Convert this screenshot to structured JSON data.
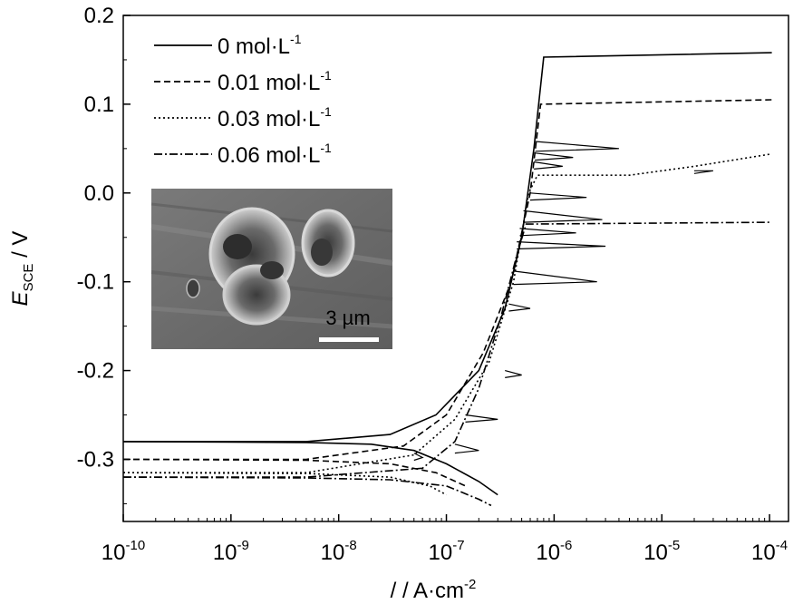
{
  "chart_data": {
    "type": "line",
    "xscale": "log",
    "xlim": [
      1e-10,
      0.00015
    ],
    "ylim": [
      -0.37,
      0.2
    ],
    "ylabel_main": "E",
    "ylabel_sub": "SCE",
    "ylabel_unit": " / V",
    "xlabel": "/ / A·cm",
    "xlabel_sup": "-2",
    "x_ticks": [
      {
        "value": 1e-10,
        "exp": "-10"
      },
      {
        "value": 1e-09,
        "exp": "-9"
      },
      {
        "value": 1e-08,
        "exp": "-8"
      },
      {
        "value": 1e-07,
        "exp": "-7"
      },
      {
        "value": 1e-06,
        "exp": "-6"
      },
      {
        "value": 1e-05,
        "exp": "-5"
      },
      {
        "value": 0.0001,
        "exp": "-4"
      }
    ],
    "x_tick_base": "10",
    "y_ticks": [
      {
        "value": 0.2,
        "label": "0.2"
      },
      {
        "value": 0.1,
        "label": "0.1"
      },
      {
        "value": 0.0,
        "label": "0.0"
      },
      {
        "value": -0.1,
        "label": "-0.1"
      },
      {
        "value": -0.2,
        "label": "-0.2"
      },
      {
        "value": -0.3,
        "label": "-0.3"
      }
    ],
    "legend_position": "top-left",
    "series": [
      {
        "name": "0 mol·L",
        "sup": "-1",
        "dash": "none",
        "cathodic": [
          [
            1e-10,
            -0.28
          ],
          [
            5e-09,
            -0.281
          ],
          [
            2e-08,
            -0.283
          ],
          [
            5e-08,
            -0.29
          ],
          [
            1e-07,
            -0.305
          ],
          [
            2e-07,
            -0.325
          ],
          [
            3e-07,
            -0.34
          ]
        ],
        "anodic": [
          [
            1e-10,
            -0.28
          ],
          [
            5e-09,
            -0.28
          ],
          [
            3e-08,
            -0.272
          ],
          [
            8e-08,
            -0.25
          ],
          [
            2e-07,
            -0.2
          ],
          [
            3.5e-07,
            -0.13
          ],
          [
            5e-07,
            -0.05
          ],
          [
            6.5e-07,
            0.05
          ],
          [
            8e-07,
            0.153
          ],
          [
            0.000105,
            0.158
          ]
        ]
      },
      {
        "name": "0.01 mol·L",
        "sup": "-1",
        "dash": "7,4",
        "cathodic": [
          [
            1e-10,
            -0.3
          ],
          [
            5e-09,
            -0.301
          ],
          [
            3e-08,
            -0.305
          ],
          [
            8e-08,
            -0.315
          ],
          [
            1.5e-07,
            -0.33
          ]
        ],
        "anodic": [
          [
            1e-10,
            -0.3
          ],
          [
            5e-09,
            -0.3
          ],
          [
            4e-08,
            -0.285
          ],
          [
            1e-07,
            -0.25
          ],
          [
            2.2e-07,
            -0.18
          ],
          [
            4e-07,
            -0.1
          ],
          [
            6e-07,
            0.0
          ],
          [
            7.5e-07,
            0.1
          ],
          [
            0.000105,
            0.105
          ]
        ]
      },
      {
        "name": "0.03 mol·L",
        "sup": "-1",
        "dash": "2,3",
        "cathodic": [
          [
            1e-10,
            -0.315
          ],
          [
            5e-09,
            -0.316
          ],
          [
            3e-08,
            -0.32
          ],
          [
            7e-08,
            -0.33
          ],
          [
            1e-07,
            -0.34
          ]
        ],
        "anodic": [
          [
            1e-10,
            -0.315
          ],
          [
            5e-09,
            -0.315
          ],
          [
            5e-08,
            -0.295
          ],
          [
            1.2e-07,
            -0.255
          ],
          [
            2.5e-07,
            -0.19
          ],
          [
            4.2e-07,
            -0.1
          ],
          [
            5.8e-07,
            0.0
          ],
          [
            7e-07,
            0.02
          ],
          [
            5e-06,
            0.02
          ],
          [
            2e-05,
            0.03
          ],
          [
            0.000105,
            0.044
          ]
        ]
      },
      {
        "name": "0.06 mol·L",
        "sup": "-1",
        "dash": "9,3,2,3",
        "cathodic": [
          [
            1e-10,
            -0.32
          ],
          [
            5e-09,
            -0.321
          ],
          [
            3e-08,
            -0.323
          ],
          [
            1e-07,
            -0.33
          ],
          [
            2e-07,
            -0.345
          ],
          [
            2.6e-07,
            -0.352
          ]
        ],
        "anodic": [
          [
            1e-10,
            -0.32
          ],
          [
            5e-09,
            -0.32
          ],
          [
            6e-08,
            -0.31
          ],
          [
            1.2e-07,
            -0.28
          ],
          [
            2e-07,
            -0.22
          ],
          [
            3.2e-07,
            -0.14
          ],
          [
            4.5e-07,
            -0.07
          ],
          [
            5.5e-07,
            -0.035
          ],
          [
            0.0001,
            -0.033
          ]
        ]
      }
    ],
    "transients": [
      [
        4.2e-07,
        -0.088,
        -0.1,
        2.5e-06
      ],
      [
        4.5e-07,
        -0.055,
        -0.06,
        3e-06
      ],
      [
        4.8e-07,
        -0.04,
        -0.045,
        1.6e-06
      ],
      [
        5.2e-07,
        -0.02,
        -0.03,
        2.8e-06
      ],
      [
        6e-07,
        0.0,
        -0.005,
        2e-06
      ],
      [
        6.5e-07,
        0.035,
        0.03,
        1.2e-06
      ],
      [
        6.7e-07,
        0.058,
        0.05,
        4e-06
      ],
      [
        6.6e-07,
        0.045,
        0.04,
        1.5e-06
      ],
      [
        3.8e-07,
        -0.125,
        -0.13,
        6e-07
      ],
      [
        3.5e-07,
        -0.2,
        -0.205,
        5e-07
      ],
      [
        1.5e-07,
        -0.25,
        -0.255,
        3e-07
      ],
      [
        1.2e-07,
        -0.283,
        -0.29,
        2e-07
      ],
      [
        5e-08,
        -0.293,
        -0.298,
        6e-08
      ],
      [
        2e-05,
        0.025,
        0.025,
        3e-05
      ]
    ],
    "inset": {
      "scale_label": "3 µm"
    }
  }
}
